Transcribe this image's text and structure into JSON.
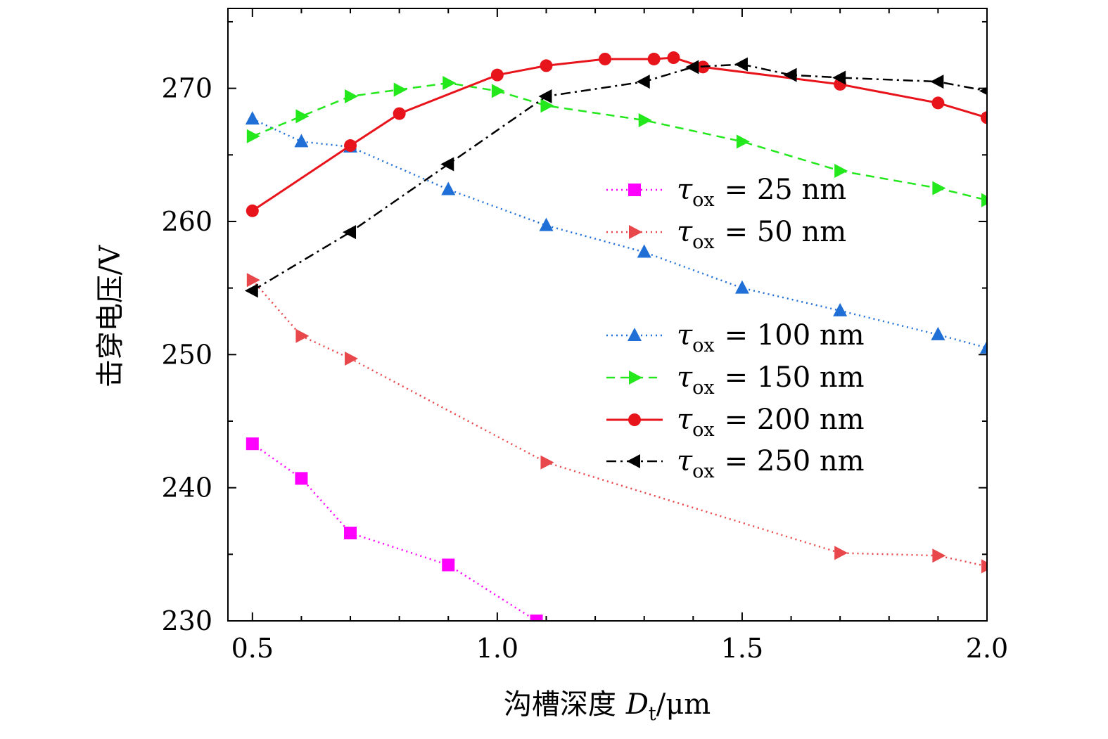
{
  "chart_data": {
    "type": "line",
    "xlabel_cjk": "沟槽深度",
    "xlabel_symbol": "D",
    "xlabel_sub": "t",
    "xlabel_unit": "/μm",
    "ylabel": "击穿电压/V",
    "xlim": [
      0.45,
      2.0
    ],
    "ylim": [
      230,
      276
    ],
    "x_ticks": [
      0.5,
      1.0,
      1.5,
      2.0
    ],
    "x_tick_labels": [
      "0.5",
      "1.0",
      "1.5",
      "2.0"
    ],
    "y_ticks": [
      230,
      240,
      250,
      260,
      270
    ],
    "y_tick_labels": [
      "230",
      "240",
      "250",
      "260",
      "270"
    ],
    "grid": false,
    "legend_prefix": "τ",
    "legend_sub": "ox",
    "series": [
      {
        "name_value": "= 25 nm",
        "color": "#ff00ff",
        "marker": "square",
        "line": "dotted",
        "x": [
          0.5,
          0.6,
          0.7,
          0.9,
          1.08
        ],
        "y": [
          243.3,
          240.7,
          236.6,
          234.2,
          230.0
        ]
      },
      {
        "name_value": "= 50 nm",
        "color": "#e8474c",
        "marker": "triangle-right",
        "line": "dotted",
        "x": [
          0.5,
          0.6,
          0.7,
          1.1,
          1.7,
          1.9,
          2.0
        ],
        "y": [
          255.6,
          251.4,
          249.7,
          241.9,
          235.1,
          234.9,
          234.1
        ]
      },
      {
        "name_value": "= 100 nm",
        "color": "#1f6fd6",
        "marker": "triangle-up",
        "line": "dotted",
        "x": [
          0.5,
          0.6,
          0.7,
          0.9,
          1.1,
          1.3,
          1.5,
          1.7,
          1.9,
          2.0
        ],
        "y": [
          267.7,
          266.0,
          265.6,
          262.4,
          259.7,
          257.7,
          255.0,
          253.3,
          251.5,
          250.5
        ]
      },
      {
        "name_value": "= 150 nm",
        "color": "#22e81c",
        "marker": "triangle-right",
        "line": "dashed",
        "x": [
          0.5,
          0.6,
          0.7,
          0.8,
          0.9,
          1.0,
          1.1,
          1.3,
          1.5,
          1.7,
          1.9,
          2.0
        ],
        "y": [
          266.4,
          267.9,
          269.4,
          269.9,
          270.4,
          269.8,
          268.7,
          267.6,
          266.0,
          263.8,
          262.5,
          261.6
        ]
      },
      {
        "name_value": "= 200 nm",
        "color": "#e8141b",
        "marker": "circle",
        "line": "solid",
        "x": [
          0.5,
          0.7,
          0.8,
          1.0,
          1.1,
          1.22,
          1.32,
          1.36,
          1.42,
          1.7,
          1.9,
          2.0
        ],
        "y": [
          260.8,
          265.7,
          268.1,
          271.0,
          271.7,
          272.2,
          272.2,
          272.3,
          271.6,
          270.3,
          268.9,
          267.8
        ]
      },
      {
        "name_value": "= 250 nm",
        "color": "#000000",
        "marker": "triangle-left",
        "line": "dashdot",
        "x": [
          0.5,
          0.7,
          0.9,
          1.1,
          1.3,
          1.4,
          1.5,
          1.6,
          1.7,
          1.9,
          2.0
        ],
        "y": [
          254.8,
          259.2,
          264.3,
          269.4,
          270.5,
          271.6,
          271.8,
          271.0,
          270.8,
          270.5,
          269.8
        ]
      }
    ]
  }
}
